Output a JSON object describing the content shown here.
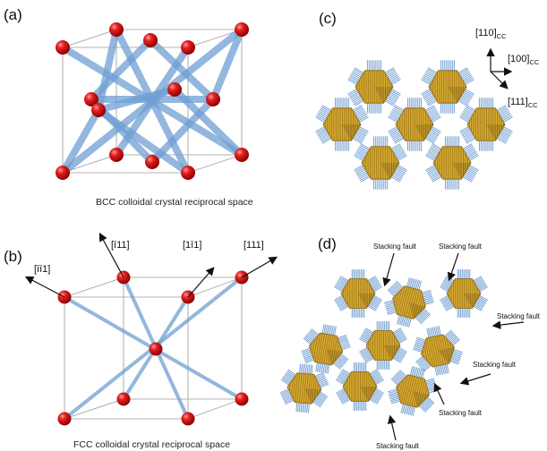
{
  "panels": {
    "a": {
      "label": "(a)",
      "caption": "BCC colloidal crystal reciprocal space"
    },
    "b": {
      "label": "(b)",
      "caption": "FCC colloidal crystal reciprocal space",
      "directions": [
        "[īī1]",
        "[ī11]",
        "[1ī1]",
        "[111]"
      ]
    },
    "c": {
      "label": "(c)",
      "axes": [
        "[110]",
        "[100]",
        "[111]"
      ],
      "axis_subscript": "CC"
    },
    "d": {
      "label": "(d)",
      "fault_label": "Stacking fault"
    }
  },
  "colors": {
    "sphere": "#d81818",
    "rod": "#6f9fd3",
    "nanocrystal": "#d7a82a",
    "ligand": "#6d9bd0"
  }
}
